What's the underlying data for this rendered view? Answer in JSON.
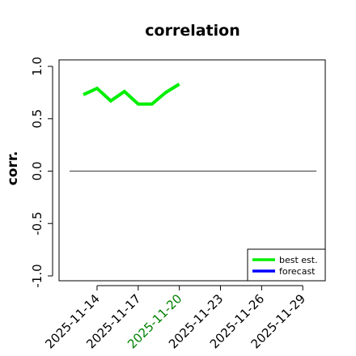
{
  "chart_data": {
    "type": "line",
    "title": "correlation",
    "xlabel": "",
    "ylabel": "corr.",
    "ylim": [
      -1.0,
      1.0
    ],
    "yticks": [
      -1.0,
      -0.5,
      0.0,
      0.5,
      1.0
    ],
    "ytick_labels": [
      "-1.0",
      "-0.5",
      "0.0",
      "0.5",
      "1.0"
    ],
    "x_dates": [
      "2025-11-13",
      "2025-11-14",
      "2025-11-15",
      "2025-11-16",
      "2025-11-17",
      "2025-11-18",
      "2025-11-19",
      "2025-11-20",
      "2025-11-21",
      "2025-11-22",
      "2025-11-23",
      "2025-11-24",
      "2025-11-25",
      "2025-11-26",
      "2025-11-27",
      "2025-11-28",
      "2025-11-29",
      "2025-11-30"
    ],
    "xticks": [
      {
        "date": "2025-11-14",
        "label": "2025-11-14",
        "color": "#000000"
      },
      {
        "date": "2025-11-17",
        "label": "2025-11-17",
        "color": "#000000"
      },
      {
        "date": "2025-11-20",
        "label": "2025-11-20",
        "color": "#008000"
      },
      {
        "date": "2025-11-23",
        "label": "2025-11-23",
        "color": "#000000"
      },
      {
        "date": "2025-11-26",
        "label": "2025-11-26",
        "color": "#000000"
      },
      {
        "date": "2025-11-29",
        "label": "2025-11-29",
        "color": "#000000"
      }
    ],
    "reference_line": {
      "y": 0.0,
      "from": "2025-11-12",
      "to": "2025-11-30",
      "color": "#555555"
    },
    "series": [
      {
        "name": "best est.",
        "color": "#00ee00",
        "points": [
          {
            "x": "2025-11-13",
            "y": 0.73
          },
          {
            "x": "2025-11-14",
            "y": 0.79
          },
          {
            "x": "2025-11-15",
            "y": 0.67
          },
          {
            "x": "2025-11-16",
            "y": 0.76
          },
          {
            "x": "2025-11-17",
            "y": 0.64
          },
          {
            "x": "2025-11-18",
            "y": 0.64
          },
          {
            "x": "2025-11-19",
            "y": 0.75
          },
          {
            "x": "2025-11-20",
            "y": 0.83
          }
        ]
      },
      {
        "name": "forecast",
        "color": "#0000ff",
        "points": []
      }
    ],
    "legend": {
      "placement": "bottom-right",
      "entries": [
        {
          "label": "best est.",
          "color": "#00ee00"
        },
        {
          "label": "forecast",
          "color": "#0000ff"
        }
      ]
    },
    "grid": false
  }
}
